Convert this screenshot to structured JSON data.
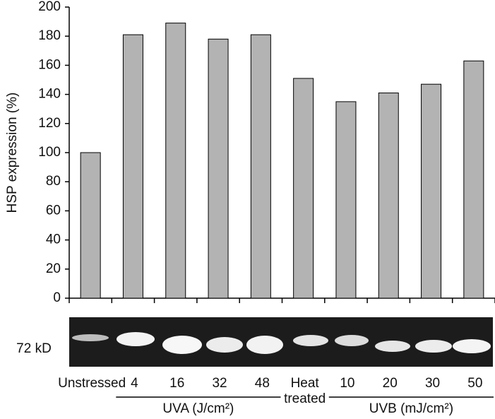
{
  "chart_data": {
    "type": "bar",
    "y_label": "HSP expression (%)",
    "categories": [
      "Unstressed",
      "4",
      "16",
      "32",
      "48",
      "Heat treated",
      "10",
      "20",
      "30",
      "50"
    ],
    "values": [
      100,
      181,
      189,
      178,
      181,
      151,
      135,
      141,
      147,
      163
    ],
    "color": "#b3b3b3",
    "ylim": [
      0,
      200
    ],
    "yticks": [
      0,
      20,
      40,
      60,
      80,
      100,
      120,
      140,
      160,
      180,
      200
    ],
    "blot_label": "72 kD",
    "groups": [
      {
        "label": "UVA (J/cm²)",
        "from": 1,
        "to": 4
      },
      {
        "label": "UVB (mJ/cm²)",
        "from": 6,
        "to": 9
      }
    ]
  }
}
